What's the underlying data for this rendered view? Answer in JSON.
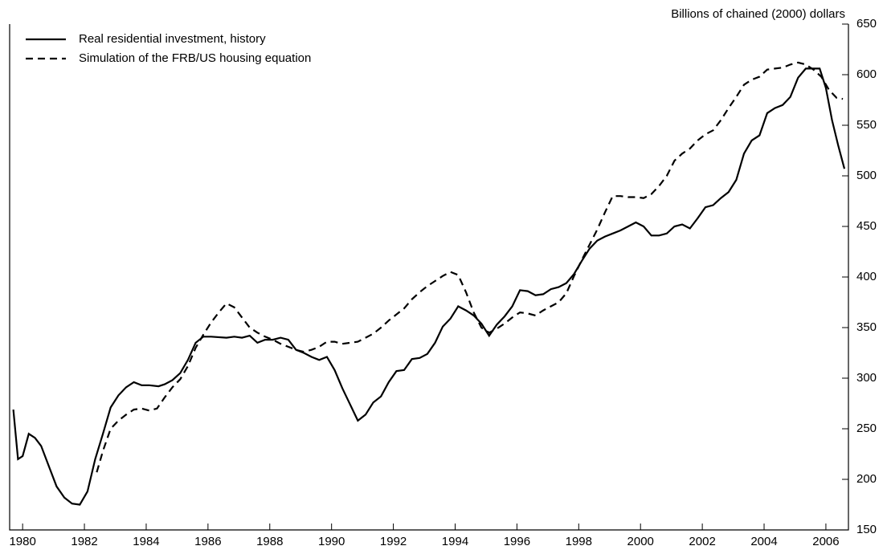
{
  "chart_data": {
    "type": "line",
    "y_axis_label": "Billions of chained (2000) dollars",
    "xlim": [
      1979.58,
      2006.73
    ],
    "xticks": [
      1980,
      1982,
      1984,
      1986,
      1988,
      1990,
      1992,
      1994,
      1996,
      1998,
      2000,
      2002,
      2004,
      2006
    ],
    "ylim": [
      150,
      650
    ],
    "yticks": [
      150,
      200,
      250,
      300,
      350,
      400,
      450,
      500,
      550,
      600,
      650
    ],
    "legend": "upper left",
    "series": [
      {
        "name": "Real residential investment, history",
        "color": "#000000",
        "dash": "solid",
        "x": [
          1979.7,
          1979.85,
          1980.0,
          1980.2,
          1980.4,
          1980.6,
          1980.85,
          1981.1,
          1981.35,
          1981.6,
          1981.85,
          1982.1,
          1982.35,
          1982.6,
          1982.85,
          1983.1,
          1983.35,
          1983.6,
          1983.85,
          1984.1,
          1984.4,
          1984.6,
          1984.85,
          1985.1,
          1985.35,
          1985.6,
          1985.85,
          1986.1,
          1986.6,
          1986.85,
          1987.1,
          1987.35,
          1987.6,
          1987.85,
          1988.1,
          1988.35,
          1988.6,
          1988.85,
          1989.1,
          1989.35,
          1989.6,
          1989.85,
          1990.1,
          1990.35,
          1990.6,
          1990.85,
          1991.1,
          1991.35,
          1991.6,
          1991.85,
          1992.1,
          1992.35,
          1992.6,
          1992.85,
          1993.1,
          1993.35,
          1993.6,
          1993.85,
          1994.1,
          1994.35,
          1994.6,
          1994.85,
          1995.1,
          1995.35,
          1995.6,
          1995.85,
          1996.1,
          1996.35,
          1996.6,
          1996.85,
          1997.1,
          1997.35,
          1997.6,
          1997.85,
          1998.1,
          1998.35,
          1998.6,
          1998.85,
          1999.1,
          1999.35,
          1999.6,
          1999.85,
          2000.1,
          2000.35,
          2000.6,
          2000.85,
          2001.1,
          2001.35,
          2001.6,
          2001.85,
          2002.1,
          2002.35,
          2002.6,
          2002.85,
          2003.1,
          2003.35,
          2003.6,
          2003.85,
          2004.1,
          2004.35,
          2004.6,
          2004.85,
          2005.1,
          2005.35,
          2005.6,
          2005.8,
          2006.0,
          2006.2,
          2006.4,
          2006.6
        ],
        "values": [
          269,
          220,
          223,
          245,
          241,
          233,
          213,
          193,
          182,
          176,
          175,
          188,
          220,
          245,
          271,
          283,
          291,
          296,
          293,
          293,
          292,
          294,
          298,
          305,
          318,
          335,
          341,
          341,
          340,
          341,
          340,
          342,
          335,
          338,
          338,
          340,
          338,
          328,
          325,
          321,
          318,
          321,
          308,
          290,
          274,
          258,
          264,
          276,
          282,
          296,
          307,
          308,
          319,
          320,
          324,
          335,
          351,
          359,
          371,
          367,
          362,
          354,
          342,
          353,
          361,
          371,
          387,
          386,
          382,
          383,
          388,
          390,
          394,
          403,
          416,
          428,
          436,
          440,
          443,
          446,
          450,
          454,
          450,
          441,
          441,
          443,
          450,
          452,
          448,
          458,
          469,
          471,
          478,
          484,
          496,
          522,
          535,
          540,
          562,
          567,
          570,
          578,
          597,
          606,
          606,
          606,
          587,
          555,
          530,
          507
        ]
      },
      {
        "name": "Simulation of the FRB/US housing equation",
        "color": "#000000",
        "dash": "dashed",
        "x": [
          1982.4,
          1982.6,
          1982.85,
          1983.1,
          1983.35,
          1983.6,
          1983.85,
          1984.1,
          1984.35,
          1984.6,
          1984.85,
          1985.1,
          1985.35,
          1985.6,
          1985.85,
          1986.1,
          1986.35,
          1986.6,
          1986.85,
          1987.1,
          1987.35,
          1987.6,
          1987.85,
          1988.1,
          1988.35,
          1988.6,
          1988.85,
          1989.1,
          1989.35,
          1989.6,
          1989.85,
          1990.1,
          1990.35,
          1990.6,
          1990.85,
          1991.1,
          1991.35,
          1991.6,
          1991.85,
          1992.1,
          1992.35,
          1992.6,
          1992.85,
          1993.1,
          1993.35,
          1993.6,
          1993.85,
          1994.1,
          1994.35,
          1994.6,
          1994.85,
          1995.1,
          1995.35,
          1995.6,
          1995.85,
          1996.1,
          1996.35,
          1996.6,
          1996.85,
          1997.1,
          1997.35,
          1997.6,
          1997.85,
          1998.1,
          1998.35,
          1998.6,
          1998.85,
          1999.1,
          1999.35,
          1999.6,
          1999.85,
          2000.1,
          2000.35,
          2000.6,
          2000.85,
          2001.1,
          2001.35,
          2001.6,
          2001.85,
          2002.1,
          2002.35,
          2002.6,
          2002.85,
          2003.1,
          2003.35,
          2003.6,
          2003.85,
          2004.1,
          2004.35,
          2004.6,
          2004.85,
          2005.1,
          2005.35,
          2005.6,
          2005.85,
          2006.1,
          2006.35,
          2006.55
        ],
        "values": [
          207,
          228,
          250,
          258,
          264,
          269,
          270,
          268,
          270,
          281,
          291,
          299,
          312,
          330,
          343,
          355,
          365,
          374,
          370,
          360,
          350,
          345,
          341,
          338,
          334,
          331,
          328,
          326,
          328,
          331,
          336,
          336,
          334,
          335,
          336,
          340,
          344,
          350,
          357,
          363,
          369,
          378,
          385,
          391,
          396,
          401,
          405,
          402,
          385,
          365,
          350,
          345,
          349,
          354,
          360,
          365,
          364,
          362,
          367,
          371,
          375,
          384,
          401,
          417,
          432,
          447,
          464,
          480,
          480,
          479,
          479,
          478,
          482,
          490,
          500,
          515,
          522,
          527,
          535,
          541,
          545,
          555,
          567,
          578,
          590,
          595,
          598,
          605,
          606,
          607,
          610,
          612,
          610,
          605,
          598,
          585,
          577,
          576
        ]
      }
    ]
  }
}
